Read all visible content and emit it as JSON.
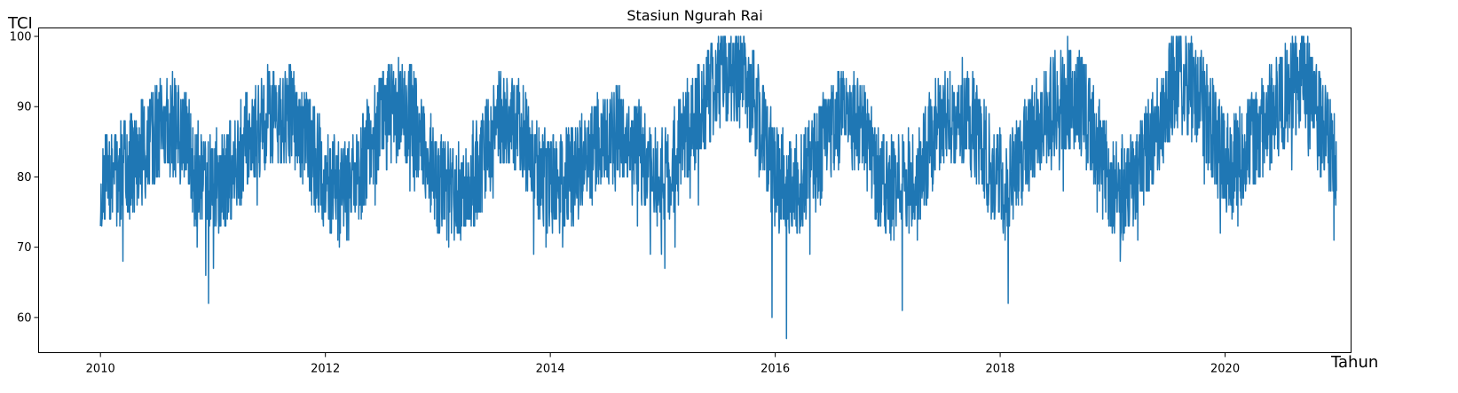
{
  "chart_data": {
    "type": "line",
    "title": "Stasiun Ngurah Rai",
    "xlabel": "Tahun",
    "ylabel": "TCI",
    "xlim": [
      2009.45,
      2021.12
    ],
    "ylim": [
      55,
      101.2
    ],
    "x_ticks": [
      2010,
      2012,
      2014,
      2016,
      2018,
      2020
    ],
    "y_ticks": [
      60,
      70,
      80,
      90,
      100
    ],
    "grid": false,
    "line_color": "#1f77b4",
    "series": [
      {
        "frequency": "daily",
        "start": "2010-01-01",
        "end": "2020-12-31",
        "trend": [
          [
            2010.0,
            79
          ],
          [
            2010.15,
            80
          ],
          [
            2010.35,
            83
          ],
          [
            2010.55,
            88
          ],
          [
            2010.7,
            87
          ],
          [
            2010.85,
            81
          ],
          [
            2011.0,
            79
          ],
          [
            2011.15,
            81
          ],
          [
            2011.3,
            85
          ],
          [
            2011.5,
            89
          ],
          [
            2011.7,
            89
          ],
          [
            2011.85,
            84
          ],
          [
            2012.0,
            80
          ],
          [
            2012.15,
            77
          ],
          [
            2012.3,
            81
          ],
          [
            2012.5,
            88
          ],
          [
            2012.7,
            90
          ],
          [
            2012.85,
            86
          ],
          [
            2013.0,
            79
          ],
          [
            2013.15,
            77
          ],
          [
            2013.35,
            81
          ],
          [
            2013.55,
            88
          ],
          [
            2013.75,
            86
          ],
          [
            2013.9,
            80
          ],
          [
            2014.05,
            79
          ],
          [
            2014.25,
            81
          ],
          [
            2014.45,
            85
          ],
          [
            2014.6,
            87
          ],
          [
            2014.75,
            86
          ],
          [
            2014.9,
            80
          ],
          [
            2015.05,
            80
          ],
          [
            2015.25,
            88
          ],
          [
            2015.5,
            93
          ],
          [
            2015.7,
            94
          ],
          [
            2015.85,
            89
          ],
          [
            2016.0,
            80
          ],
          [
            2016.15,
            78
          ],
          [
            2016.35,
            82
          ],
          [
            2016.55,
            88
          ],
          [
            2016.75,
            88
          ],
          [
            2016.9,
            80
          ],
          [
            2017.05,
            78
          ],
          [
            2017.25,
            80
          ],
          [
            2017.45,
            87
          ],
          [
            2017.65,
            90
          ],
          [
            2017.8,
            86
          ],
          [
            2017.95,
            80
          ],
          [
            2018.05,
            79
          ],
          [
            2018.25,
            85
          ],
          [
            2018.5,
            91
          ],
          [
            2018.7,
            91
          ],
          [
            2018.85,
            85
          ],
          [
            2019.0,
            79
          ],
          [
            2019.15,
            78
          ],
          [
            2019.35,
            85
          ],
          [
            2019.55,
            94
          ],
          [
            2019.75,
            92
          ],
          [
            2019.9,
            86
          ],
          [
            2020.05,
            81
          ],
          [
            2020.25,
            85
          ],
          [
            2020.5,
            91
          ],
          [
            2020.7,
            94
          ],
          [
            2020.85,
            87
          ],
          [
            2020.99,
            82
          ]
        ],
        "amplitude": 7.5,
        "min": 57,
        "max": 100,
        "notable_points": [
          [
            2010.96,
            62
          ],
          [
            2015.97,
            60
          ],
          [
            2016.1,
            57
          ],
          [
            2017.13,
            61
          ],
          [
            2018.07,
            62
          ],
          [
            2018.6,
            100
          ],
          [
            2020.73,
            99
          ]
        ]
      }
    ]
  }
}
